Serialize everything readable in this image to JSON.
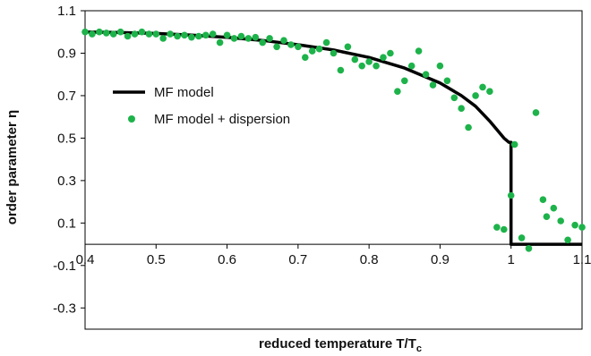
{
  "chart_data": {
    "type": "scatter",
    "xlabel": "reduced temperature T/T",
    "xlabel_sub": "c",
    "ylabel": "order parameter η",
    "xlim": [
      0.4,
      1.1
    ],
    "ylim": [
      -0.4,
      1.1
    ],
    "x_ticks": [
      "0.4",
      "0.5",
      "0.6",
      "0.7",
      "0.8",
      "0.9",
      "1",
      "1.1"
    ],
    "y_ticks": [
      "1.1",
      "0.9",
      "0.7",
      "0.5",
      "0.3",
      "0.1",
      "-0.1",
      "-0.3"
    ],
    "legend_position": "left",
    "colors": {
      "line": "#000000",
      "points": "#1db34a"
    },
    "series": [
      {
        "name": "MF model",
        "kind": "line",
        "x": [
          0.4,
          0.45,
          0.5,
          0.55,
          0.6,
          0.65,
          0.7,
          0.75,
          0.8,
          0.85,
          0.9,
          0.93,
          0.95,
          0.97,
          0.99,
          0.997,
          1.0,
          1.0,
          1.1
        ],
        "y": [
          1.0,
          0.997,
          0.993,
          0.985,
          0.975,
          0.96,
          0.94,
          0.915,
          0.88,
          0.83,
          0.76,
          0.7,
          0.65,
          0.58,
          0.5,
          0.48,
          0.48,
          0.0,
          0.0
        ]
      },
      {
        "name": "MF model + dispersion",
        "kind": "scatter",
        "x": [
          0.4,
          0.41,
          0.42,
          0.43,
          0.44,
          0.45,
          0.46,
          0.47,
          0.48,
          0.49,
          0.5,
          0.51,
          0.52,
          0.53,
          0.54,
          0.55,
          0.56,
          0.57,
          0.58,
          0.59,
          0.6,
          0.61,
          0.62,
          0.63,
          0.64,
          0.65,
          0.66,
          0.67,
          0.68,
          0.69,
          0.7,
          0.71,
          0.72,
          0.73,
          0.74,
          0.75,
          0.76,
          0.77,
          0.78,
          0.79,
          0.8,
          0.81,
          0.82,
          0.83,
          0.84,
          0.85,
          0.86,
          0.87,
          0.88,
          0.89,
          0.9,
          0.91,
          0.92,
          0.93,
          0.94,
          0.95,
          0.96,
          0.97,
          0.98,
          0.99,
          1.0,
          1.005,
          1.015,
          1.025,
          1.035,
          1.045,
          1.05,
          1.06,
          1.07,
          1.08,
          1.09,
          1.1
        ],
        "y": [
          1.0,
          0.99,
          1.0,
          0.995,
          0.99,
          1.0,
          0.98,
          0.99,
          1.0,
          0.99,
          0.99,
          0.97,
          0.99,
          0.98,
          0.985,
          0.975,
          0.98,
          0.985,
          0.99,
          0.95,
          0.985,
          0.97,
          0.98,
          0.97,
          0.975,
          0.95,
          0.97,
          0.93,
          0.96,
          0.94,
          0.93,
          0.88,
          0.91,
          0.92,
          0.95,
          0.9,
          0.82,
          0.93,
          0.87,
          0.84,
          0.86,
          0.84,
          0.88,
          0.9,
          0.72,
          0.77,
          0.84,
          0.91,
          0.8,
          0.75,
          0.84,
          0.77,
          0.69,
          0.64,
          0.55,
          0.7,
          0.74,
          0.72,
          0.08,
          0.07,
          0.23,
          0.47,
          0.03,
          -0.02,
          0.62,
          0.21,
          0.13,
          0.17,
          0.11,
          0.02,
          0.09,
          0.08
        ]
      }
    ]
  }
}
